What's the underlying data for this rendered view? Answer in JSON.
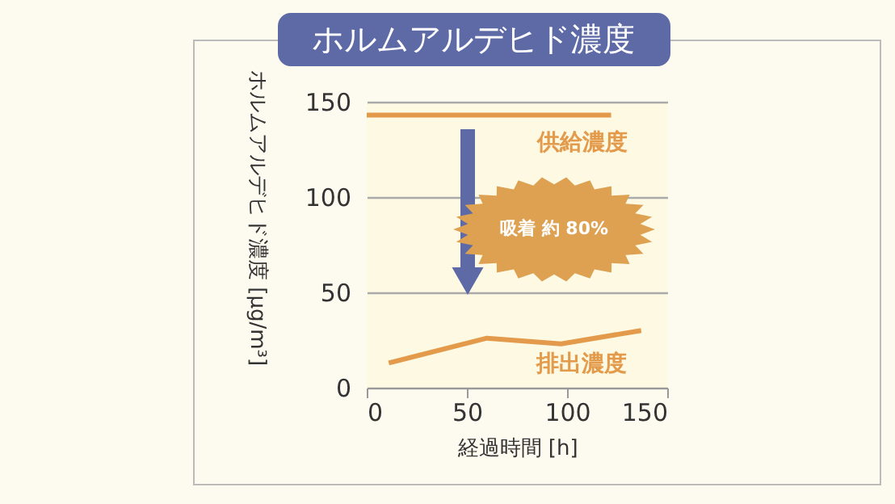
{
  "chart_data": {
    "type": "line",
    "title": "ホルムアルデヒド濃度",
    "xlabel": "経過時間 [h]",
    "ylabel": "ホルムアルデヒド濃度 [μg/m³]",
    "series": [
      {
        "name": "供給濃度",
        "color": "#e39a4a",
        "x": [
          0,
          122
        ],
        "values": [
          143,
          143
        ]
      },
      {
        "name": "排出濃度",
        "color": "#e39a4a",
        "x": [
          11,
          60,
          97,
          137
        ],
        "values": [
          13,
          26,
          23,
          30
        ]
      }
    ],
    "xlim": [
      0,
      150
    ],
    "xticks": [
      0,
      50,
      100,
      150
    ],
    "ylim": [
      0,
      150
    ],
    "yticks": [
      0,
      50,
      100,
      150
    ],
    "grid": "y",
    "legend": false,
    "marker": "none",
    "line_style": "solid",
    "annotations": [
      "吸着 約 80%"
    ]
  }
}
